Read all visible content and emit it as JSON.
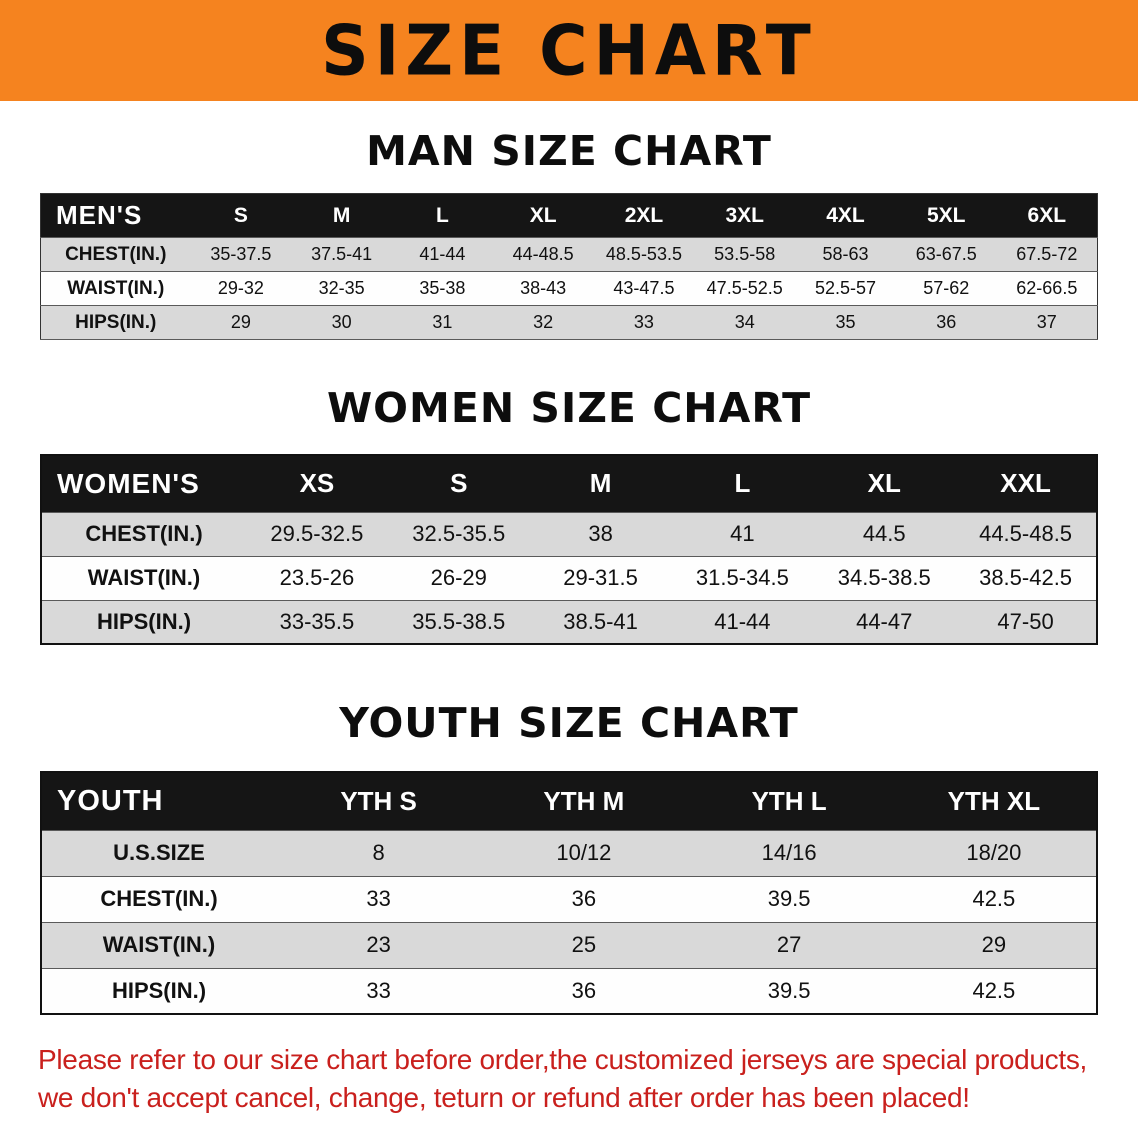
{
  "banner": {
    "title": "SIZE CHART",
    "background": "#f5831f",
    "text_color": "#0d0d0d"
  },
  "colors": {
    "table_header_bg": "#151515",
    "table_header_text": "#ffffff",
    "row_stripe": "#d9d9d9"
  },
  "chart_data": [
    {
      "type": "table",
      "title": "MAN SIZE CHART",
      "header": [
        "MEN'S",
        "S",
        "M",
        "L",
        "XL",
        "2XL",
        "3XL",
        "4XL",
        "5XL",
        "6XL"
      ],
      "rows": [
        [
          "CHEST(IN.)",
          "35-37.5",
          "37.5-41",
          "41-44",
          "44-48.5",
          "48.5-53.5",
          "53.5-58",
          "58-63",
          "63-67.5",
          "67.5-72"
        ],
        [
          "WAIST(IN.)",
          "29-32",
          "32-35",
          "35-38",
          "38-43",
          "43-47.5",
          "47.5-52.5",
          "52.5-57",
          "57-62",
          "62-66.5"
        ],
        [
          "HIPS(IN.)",
          "29",
          "30",
          "31",
          "32",
          "33",
          "34",
          "35",
          "36",
          "37"
        ]
      ]
    },
    {
      "type": "table",
      "title": "WOMEN SIZE CHART",
      "header": [
        "WOMEN'S",
        "XS",
        "S",
        "M",
        "L",
        "XL",
        "XXL"
      ],
      "rows": [
        [
          "CHEST(IN.)",
          "29.5-32.5",
          "32.5-35.5",
          "38",
          "41",
          "44.5",
          "44.5-48.5"
        ],
        [
          "WAIST(IN.)",
          "23.5-26",
          "26-29",
          "29-31.5",
          "31.5-34.5",
          "34.5-38.5",
          "38.5-42.5"
        ],
        [
          "HIPS(IN.)",
          "33-35.5",
          "35.5-38.5",
          "38.5-41",
          "41-44",
          "44-47",
          "47-50"
        ]
      ]
    },
    {
      "type": "table",
      "title": "YOUTH SIZE CHART",
      "header": [
        "YOUTH",
        "YTH S",
        "YTH M",
        "YTH L",
        "YTH XL"
      ],
      "rows": [
        [
          "U.S.SIZE",
          "8",
          "10/12",
          "14/16",
          "18/20"
        ],
        [
          "CHEST(IN.)",
          "33",
          "36",
          "39.5",
          "42.5"
        ],
        [
          "WAIST(IN.)",
          "23",
          "25",
          "27",
          "29"
        ],
        [
          "HIPS(IN.)",
          "33",
          "36",
          "39.5",
          "42.5"
        ]
      ]
    }
  ],
  "note": {
    "color": "#c9201d",
    "line1": "Please refer to our size chart before order,the customized jerseys are special products,",
    "line2": "we don't accept cancel, change, teturn or refund after order has been placed!"
  }
}
